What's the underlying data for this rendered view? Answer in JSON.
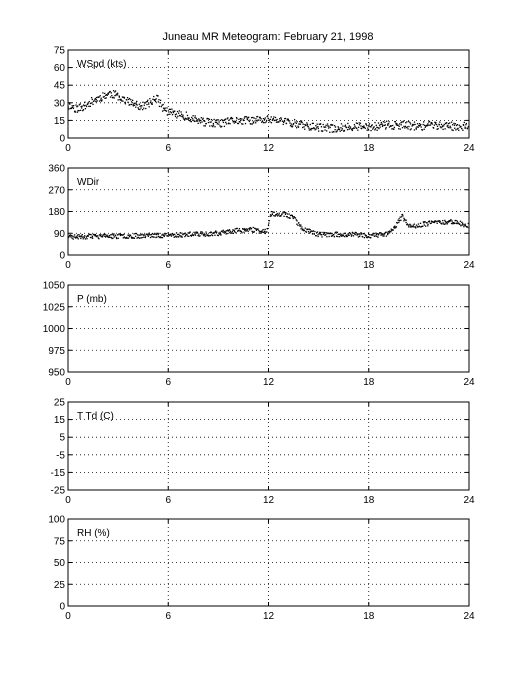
{
  "page": {
    "title": "Juneau MR Meteogram:  February 21, 1998"
  },
  "chart_data": [
    {
      "type": "scatter",
      "label": "WSpd (kts)",
      "xlim": [
        0,
        24
      ],
      "xticks": [
        0,
        6,
        12,
        18,
        24
      ],
      "ylim": [
        0,
        75
      ],
      "yticks": [
        0,
        15,
        30,
        45,
        60,
        75
      ],
      "grid": true,
      "marker_color": "#000000",
      "trend": [
        [
          0,
          28
        ],
        [
          0.5,
          25
        ],
        [
          1,
          27
        ],
        [
          1.5,
          32
        ],
        [
          2,
          35
        ],
        [
          2.5,
          38
        ],
        [
          3,
          36
        ],
        [
          3.5,
          32
        ],
        [
          4,
          28
        ],
        [
          4.5,
          27
        ],
        [
          5,
          31
        ],
        [
          5.3,
          35
        ],
        [
          5.6,
          27
        ],
        [
          6,
          22
        ],
        [
          7,
          19
        ],
        [
          8,
          14
        ],
        [
          9,
          12
        ],
        [
          10,
          15
        ],
        [
          11,
          15
        ],
        [
          12,
          16
        ],
        [
          13,
          14
        ],
        [
          14,
          11
        ],
        [
          15,
          9
        ],
        [
          16,
          8
        ],
        [
          17,
          10
        ],
        [
          18,
          9
        ],
        [
          19,
          11
        ],
        [
          20,
          11
        ],
        [
          21,
          10
        ],
        [
          22,
          11
        ],
        [
          23,
          10
        ],
        [
          24,
          10
        ]
      ],
      "jitter": 3.5,
      "points_per_hour": 30,
      "seed": 11
    },
    {
      "type": "scatter",
      "label": "WDir",
      "xlim": [
        0,
        24
      ],
      "xticks": [
        0,
        6,
        12,
        18,
        24
      ],
      "ylim": [
        0,
        360
      ],
      "yticks": [
        0,
        90,
        180,
        270,
        360
      ],
      "grid": true,
      "marker_color": "#000000",
      "trend": [
        [
          0,
          75
        ],
        [
          3,
          78
        ],
        [
          6,
          82
        ],
        [
          9,
          90
        ],
        [
          10,
          100
        ],
        [
          11,
          105
        ],
        [
          11.9,
          95
        ],
        [
          12.1,
          170
        ],
        [
          13,
          170
        ],
        [
          13.5,
          155
        ],
        [
          14,
          110
        ],
        [
          15,
          85
        ],
        [
          16,
          85
        ],
        [
          17,
          85
        ],
        [
          18,
          80
        ],
        [
          19,
          85
        ],
        [
          19.5,
          110
        ],
        [
          20,
          160
        ],
        [
          20.5,
          115
        ],
        [
          21,
          125
        ],
        [
          22,
          135
        ],
        [
          23,
          140
        ],
        [
          24,
          120
        ]
      ],
      "jitter": 10,
      "points_per_hour": 30,
      "seed": 23
    },
    {
      "type": "scatter",
      "label": "P (mb)",
      "xlim": [
        0,
        24
      ],
      "xticks": [
        0,
        6,
        12,
        18,
        24
      ],
      "ylim": [
        950,
        1050
      ],
      "yticks": [
        950,
        975,
        1000,
        1025,
        1050
      ],
      "grid": true
    },
    {
      "type": "scatter",
      "label": "T Td (C)",
      "xlim": [
        0,
        24
      ],
      "xticks": [
        0,
        6,
        12,
        18,
        24
      ],
      "ylim": [
        -25,
        25
      ],
      "yticks": [
        -25,
        -15,
        -5,
        5,
        15,
        25
      ],
      "ytick_labels": [
        "-25",
        "-15",
        "-5",
        "5",
        "15",
        "25"
      ],
      "grid": true
    },
    {
      "type": "scatter",
      "label": "RH (%)",
      "xlim": [
        0,
        24
      ],
      "xticks": [
        0,
        6,
        12,
        18,
        24
      ],
      "ylim": [
        0,
        100
      ],
      "yticks": [
        0,
        25,
        50,
        75,
        100
      ],
      "grid": true
    }
  ]
}
